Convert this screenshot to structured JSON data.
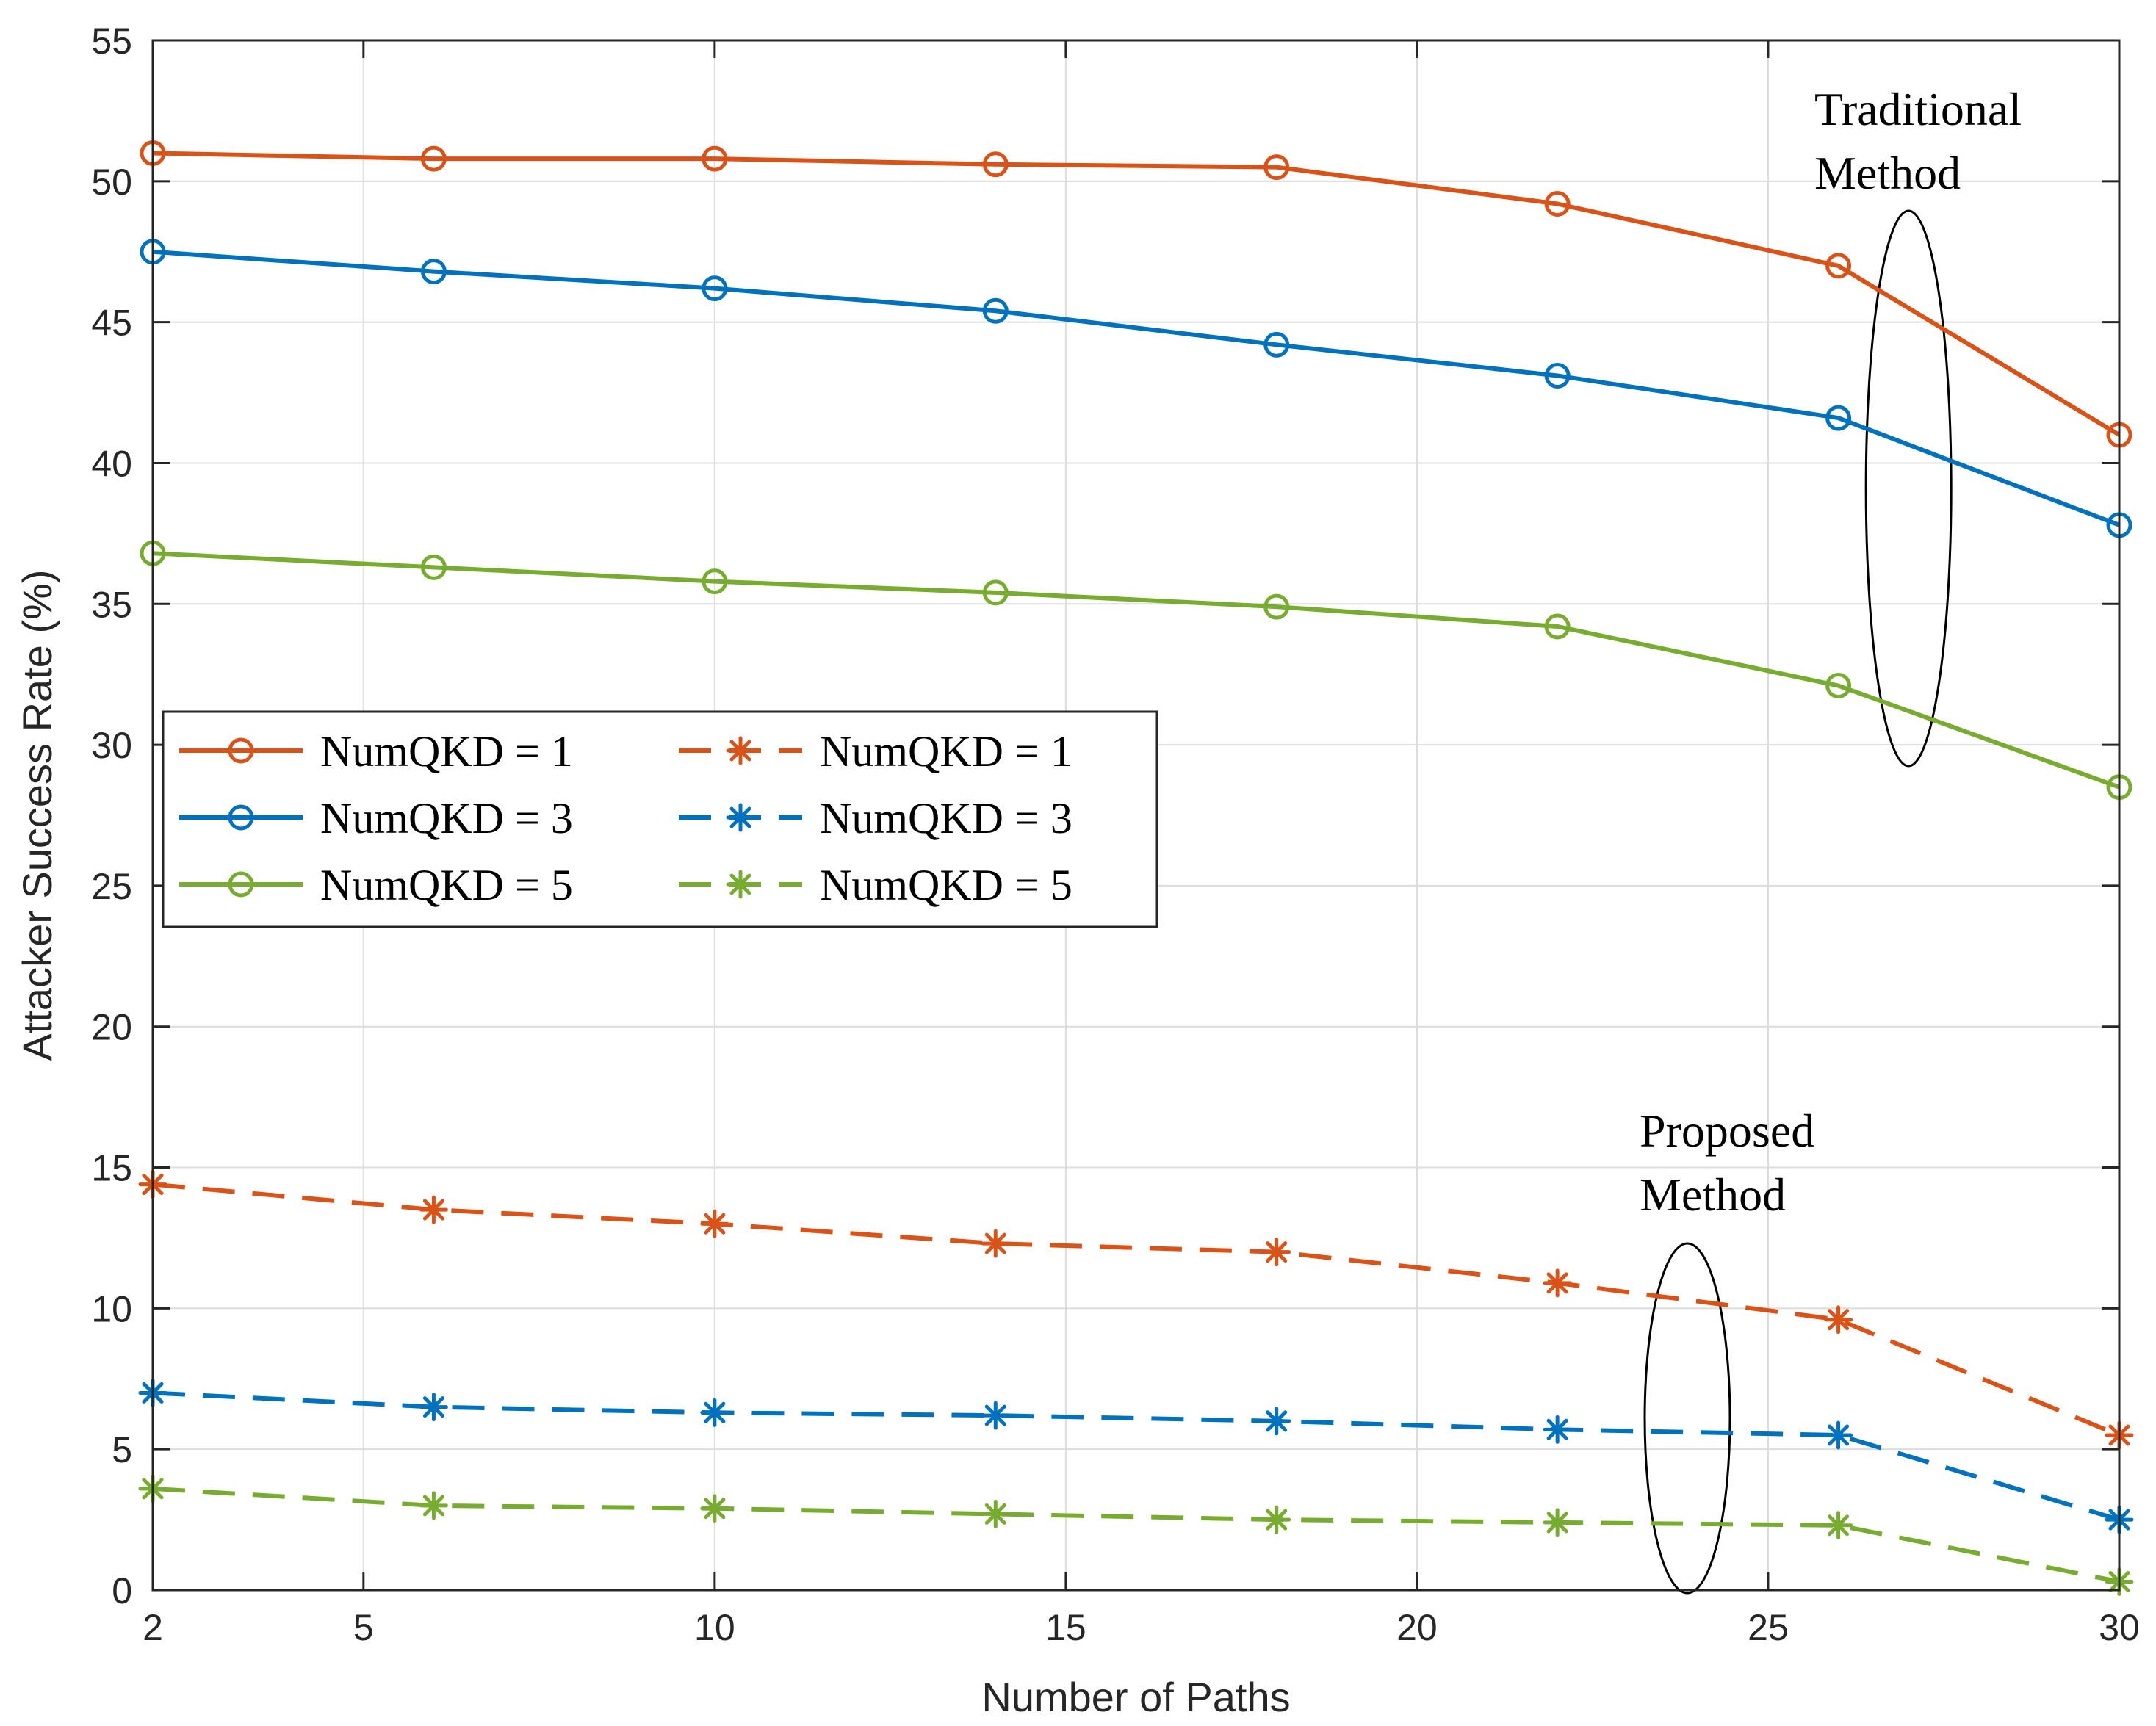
{
  "chart_data": {
    "type": "line",
    "title": "",
    "xlabel": "Number of Paths",
    "ylabel": "Attacker Success Rate (%)",
    "xlim": [
      2,
      30
    ],
    "ylim": [
      0,
      55
    ],
    "xticks": [
      2,
      5,
      10,
      15,
      20,
      25,
      30
    ],
    "yticks": [
      0,
      5,
      10,
      15,
      20,
      25,
      30,
      35,
      40,
      45,
      50,
      55
    ],
    "grid": true,
    "legend_position": "center-left",
    "x": [
      2,
      6,
      10,
      14,
      18,
      22,
      26,
      30
    ],
    "series": [
      {
        "name": "NumQKD = 1",
        "method": "Traditional",
        "color": "#d95319",
        "marker": "circle",
        "linestyle": "solid",
        "values": [
          51.0,
          50.8,
          50.8,
          50.6,
          50.5,
          49.2,
          47.0,
          41.0
        ]
      },
      {
        "name": "NumQKD = 3",
        "method": "Traditional",
        "color": "#0072bd",
        "marker": "circle",
        "linestyle": "solid",
        "values": [
          47.5,
          46.8,
          46.2,
          45.4,
          44.2,
          43.1,
          41.6,
          37.8
        ]
      },
      {
        "name": "NumQKD = 5",
        "method": "Traditional",
        "color": "#77ac30",
        "marker": "circle",
        "linestyle": "solid",
        "values": [
          36.8,
          36.3,
          35.8,
          35.4,
          34.9,
          34.2,
          32.1,
          28.5
        ]
      },
      {
        "name": "NumQKD = 1",
        "method": "Proposed",
        "color": "#d95319",
        "marker": "star",
        "linestyle": "dashed",
        "values": [
          14.4,
          13.5,
          13.0,
          12.3,
          12.0,
          10.9,
          9.6,
          5.5
        ]
      },
      {
        "name": "NumQKD = 3",
        "method": "Proposed",
        "color": "#0072bd",
        "marker": "star",
        "linestyle": "dashed",
        "values": [
          7.0,
          6.5,
          6.3,
          6.2,
          6.0,
          5.7,
          5.5,
          2.5
        ]
      },
      {
        "name": "NumQKD = 5",
        "method": "Proposed",
        "color": "#77ac30",
        "marker": "star",
        "linestyle": "dashed",
        "values": [
          3.6,
          3.0,
          2.9,
          2.7,
          2.5,
          2.4,
          2.3,
          0.3
        ]
      }
    ],
    "annotations": [
      {
        "lines": [
          "Traditional",
          "Method"
        ],
        "x": 27,
        "y": 39
      },
      {
        "lines": [
          "Proposed",
          "Method"
        ],
        "x": 23.9,
        "y": 5.5
      }
    ]
  }
}
